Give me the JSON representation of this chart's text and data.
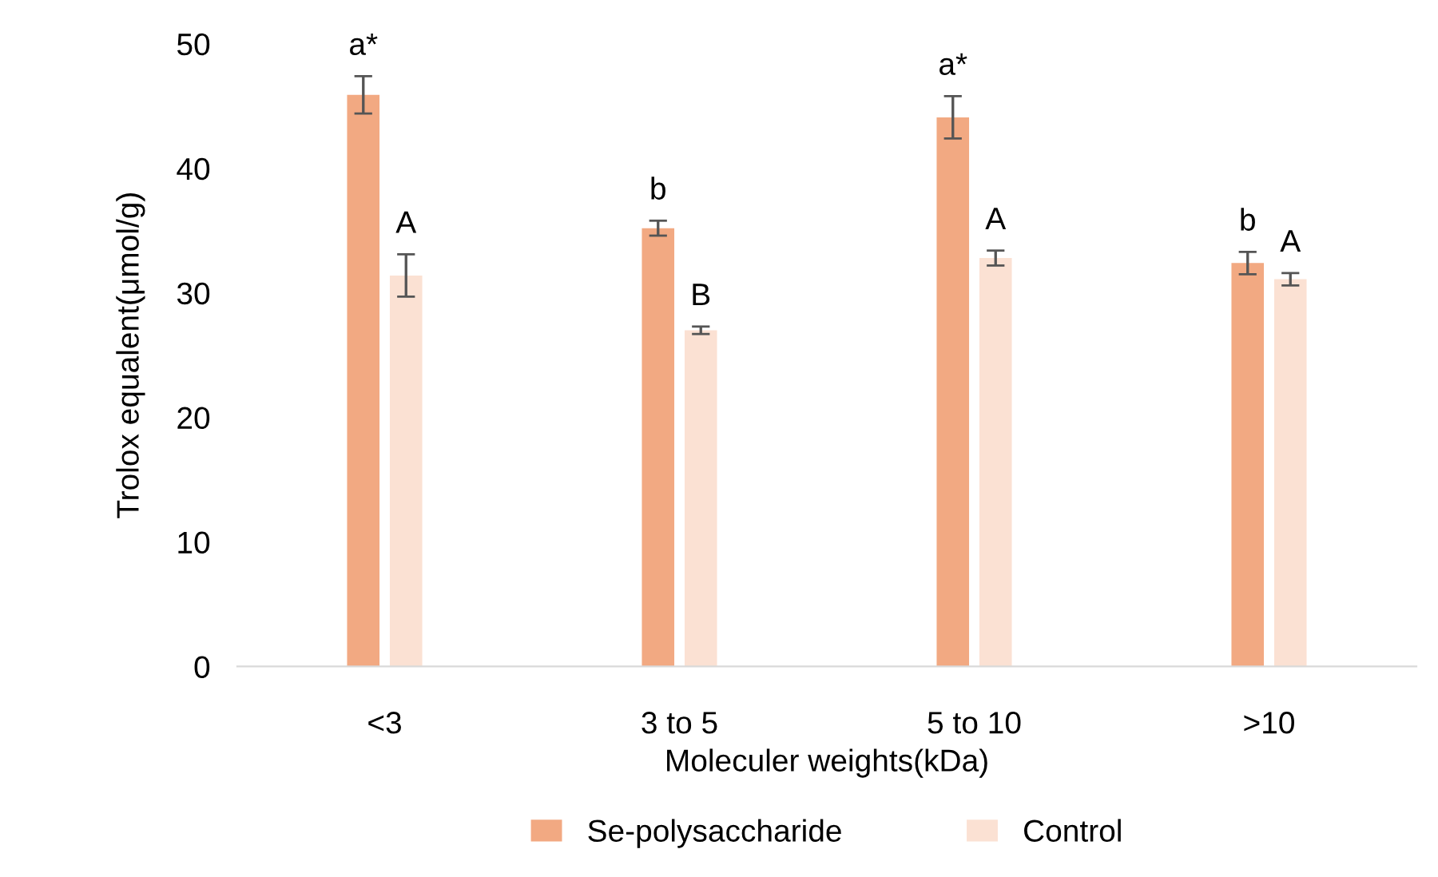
{
  "chart_data": {
    "type": "bar",
    "xlabel": "Moleculer weights(kDa)",
    "ylabel": "Trolox equalent(μmol/g)",
    "categories": [
      "<3",
      "3 to 5",
      "5 to 10",
      ">10"
    ],
    "series": [
      {
        "name": "Se-polysaccharide",
        "color": "#f2a982",
        "values": [
          45.9,
          35.2,
          44.1,
          32.4
        ],
        "errors": [
          1.5,
          0.6,
          1.7,
          0.9
        ],
        "value_labels": [
          "a*",
          "b",
          "a*",
          "b"
        ]
      },
      {
        "name": "Control",
        "color": "#fbe1d3",
        "values": [
          31.4,
          27.0,
          32.8,
          31.1
        ],
        "errors": [
          1.7,
          0.3,
          0.6,
          0.5
        ],
        "value_labels": [
          "A",
          "B",
          "A",
          "A"
        ]
      }
    ],
    "ylim": [
      0,
      50
    ],
    "yticks": [
      0,
      10,
      20,
      30,
      40,
      50
    ],
    "grid": false,
    "legend": "bottom"
  }
}
